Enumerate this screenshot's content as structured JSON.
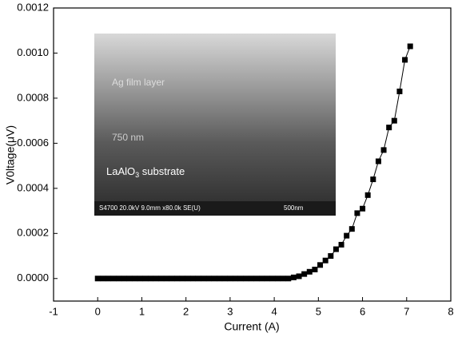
{
  "chart_data": {
    "type": "line",
    "x_label": "Current (A)",
    "y_label": "V0ltage(μV)",
    "x": [
      0,
      0.12,
      0.24,
      0.36,
      0.48,
      0.6,
      0.72,
      0.84,
      0.96,
      1.08,
      1.2,
      1.32,
      1.44,
      1.56,
      1.68,
      1.8,
      1.92,
      2.04,
      2.16,
      2.28,
      2.4,
      2.52,
      2.64,
      2.76,
      2.88,
      3.0,
      3.12,
      3.24,
      3.36,
      3.48,
      3.6,
      3.72,
      3.84,
      3.96,
      4.08,
      4.2,
      4.32,
      4.44,
      4.56,
      4.68,
      4.8,
      4.92,
      5.04,
      5.16,
      5.28,
      5.4,
      5.52,
      5.64,
      5.76,
      5.88,
      6.0,
      6.12,
      6.24,
      6.36,
      6.48,
      6.6,
      6.72,
      6.84,
      6.96,
      7.08
    ],
    "series": [
      {
        "color": "#000000",
        "values": [
          0,
          0,
          0,
          0,
          0,
          0,
          0,
          0,
          0,
          0,
          0,
          0,
          0,
          0,
          0,
          0,
          0,
          0,
          0,
          0,
          0,
          0,
          0,
          0,
          0,
          0,
          0,
          0,
          0,
          0,
          0,
          0,
          0,
          0,
          0,
          0,
          0,
          5e-06,
          1e-05,
          2e-05,
          3e-05,
          4e-05,
          6e-05,
          8e-05,
          0.0001,
          0.00013,
          0.00015,
          0.00019,
          0.00022,
          0.00029,
          0.00031,
          0.00037,
          0.00044,
          0.00052,
          0.00057,
          0.00067,
          0.0007,
          0.00083,
          0.00097,
          0.00103
        ]
      }
    ],
    "xlim": [
      -1,
      8
    ],
    "xticks": [
      -1,
      0,
      1,
      2,
      3,
      4,
      5,
      6,
      7,
      8
    ],
    "ylim": [
      -0.0001,
      0.0012
    ],
    "yticks": [
      {
        "value": 0,
        "label": "0.0000"
      },
      {
        "value": 0.0002,
        "label": "0.0002"
      },
      {
        "value": 0.0004,
        "label": "0.0004"
      },
      {
        "value": 0.0006,
        "label": "0.0006"
      },
      {
        "value": 0.0008,
        "label": "0.0008"
      },
      {
        "value": 0.001,
        "label": "0.0010"
      },
      {
        "value": 0.0012,
        "label": "0.0012"
      }
    ],
    "grid": false,
    "inset": {
      "layer": "Ag film layer",
      "thickness": "750 nm",
      "substrate": {
        "text": "LaAlO",
        "sub": "3",
        "rest": " substrate"
      },
      "info": "S4700 20.0kV 9.0mm x80.0k SE(U)",
      "scale": "500nm"
    }
  }
}
